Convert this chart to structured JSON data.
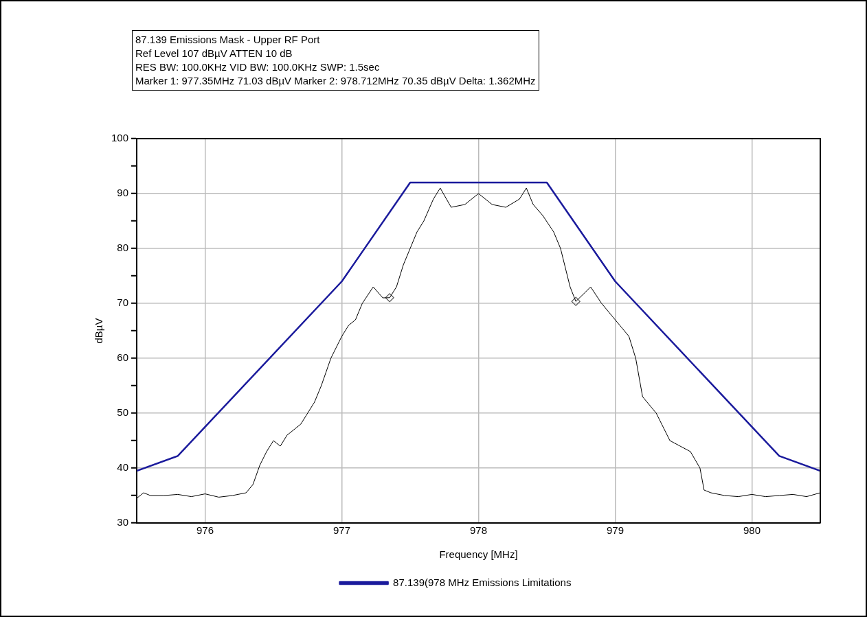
{
  "chart_data": {
    "type": "line",
    "title": "87.139 Emissions Mask - Upper RF Port",
    "annotations": [
      "Ref Level 107 dBµV    ATTEN 10 dB",
      "RES BW: 100.0KHz  VID BW: 100.0KHz  SWP: 1.5sec",
      "Marker 1: 977.35MHz  71.03 dBµV    Marker 2: 978.712MHz  70.35 dBµV Delta: 1.362MHz"
    ],
    "xlabel": "Frequency [MHz]",
    "ylabel": "dBµV",
    "xlim": [
      975.5,
      980.5
    ],
    "xticks": [
      976,
      977,
      978,
      979,
      980
    ],
    "ylim": [
      30,
      100
    ],
    "yticks": [
      30,
      {
        "value": 35,
        "label": null
      },
      40,
      {
        "value": 45,
        "label": null
      },
      50,
      {
        "value": 55,
        "label": null
      },
      60,
      {
        "value": 65,
        "label": null
      },
      70,
      {
        "value": 75,
        "label": null
      },
      80,
      {
        "value": 85,
        "label": null
      },
      90,
      {
        "value": 95,
        "label": null
      },
      100
    ],
    "grid": true,
    "legend": "bottom",
    "marker": "none",
    "line_style": "solid",
    "series": [
      {
        "name": "87.139(978 MHz Emissions Limitations",
        "color": "#1a1a9c",
        "x": [
          975.5,
          975.8,
          977,
          977.5,
          978.5,
          979,
          980.2,
          980.5
        ],
        "values": [
          39.5,
          42.2,
          74,
          92,
          92,
          74,
          42.2,
          39.5
        ]
      },
      {
        "color": "#000000",
        "x": [
          975.5,
          975.55,
          975.6,
          975.7,
          975.8,
          975.9,
          976,
          976.1,
          976.2,
          976.3,
          976.35,
          976.4,
          976.45,
          976.5,
          976.55,
          976.6,
          976.7,
          976.75,
          976.8,
          976.85,
          976.92,
          977,
          977.05,
          977.1,
          977.15,
          977.23,
          977.3,
          977.35,
          977.4,
          977.45,
          977.5,
          977.55,
          977.6,
          977.67,
          977.72,
          977.8,
          977.9,
          978,
          978.1,
          978.2,
          978.3,
          978.35,
          978.4,
          978.47,
          978.55,
          978.6,
          978.67,
          978.712,
          978.78,
          978.82,
          978.9,
          979,
          979.1,
          979.15,
          979.2,
          979.3,
          979.4,
          979.55,
          979.62,
          979.65,
          979.7,
          979.8,
          979.9,
          980,
          980.1,
          980.2,
          980.3,
          980.4,
          980.5
        ],
        "values": [
          34.5,
          35.5,
          35,
          35,
          35.2,
          34.8,
          35.3,
          34.7,
          35,
          35.5,
          37,
          40.5,
          43,
          45,
          44,
          46,
          48,
          50,
          52,
          55,
          60,
          64,
          66,
          67,
          70,
          73,
          71,
          71.03,
          73,
          77,
          80,
          83,
          85,
          89,
          91,
          87.5,
          88,
          90,
          88,
          87.5,
          89,
          91,
          88,
          86,
          83,
          80,
          73,
          70.35,
          72,
          73,
          70,
          67,
          64,
          60,
          53,
          50,
          45,
          43,
          40,
          36,
          35.5,
          35,
          34.8,
          35.2,
          34.8,
          35,
          35.2,
          34.8,
          35.5
        ]
      },
      {
        "type": "scatter",
        "marker": "diamond",
        "color": "#555555",
        "x": [
          977.35,
          978.712
        ],
        "values": [
          71.03,
          70.35
        ]
      }
    ]
  }
}
